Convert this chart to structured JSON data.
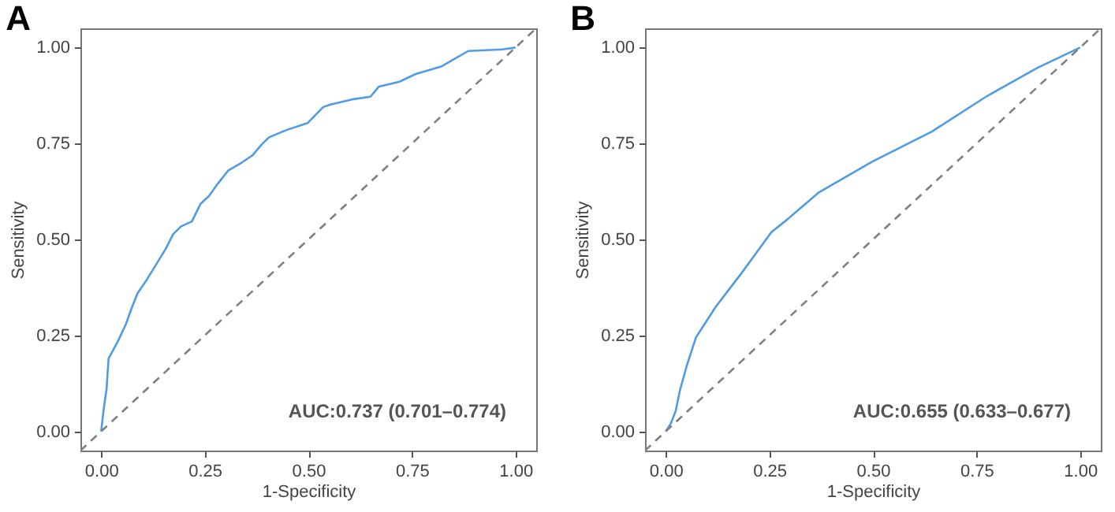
{
  "chart_data": [
    {
      "type": "line",
      "title": "A",
      "xlabel": "1-Specificity",
      "ylabel": "Sensitivity",
      "xlim": [
        -0.05,
        1.05
      ],
      "ylim": [
        -0.05,
        1.05
      ],
      "xticks": [
        {
          "value": 0,
          "label": "0.00"
        },
        {
          "value": 0.25,
          "label": "0.25"
        },
        {
          "value": 0.5,
          "label": "0.50"
        },
        {
          "value": 0.75,
          "label": "0.75"
        },
        {
          "value": 1,
          "label": "1.00"
        }
      ],
      "yticks": [
        {
          "value": 0,
          "label": "0.00"
        },
        {
          "value": 0.25,
          "label": "0.25"
        },
        {
          "value": 0.5,
          "label": "0.50"
        },
        {
          "value": 0.75,
          "label": "0.75"
        },
        {
          "value": 1,
          "label": "1.00"
        }
      ],
      "grid": false,
      "line_style": "solid",
      "annotations": [
        "AUC:0.737 (0.701–0.774)"
      ],
      "series": [
        {
          "color": "#4f9be6",
          "x": [
            0,
            0.006,
            0.013,
            0.018,
            0.028,
            0.041,
            0.06,
            0.075,
            0.088,
            0.11,
            0.13,
            0.155,
            0.174,
            0.193,
            0.219,
            0.24,
            0.26,
            0.282,
            0.307,
            0.339,
            0.365,
            0.388,
            0.405,
            0.447,
            0.498,
            0.536,
            0.555,
            0.606,
            0.65,
            0.67,
            0.72,
            0.759,
            0.822,
            0.854,
            0.886,
            0.968,
            1
          ],
          "values": [
            0,
            0.057,
            0.11,
            0.19,
            0.21,
            0.236,
            0.28,
            0.325,
            0.36,
            0.395,
            0.43,
            0.474,
            0.514,
            0.534,
            0.547,
            0.593,
            0.613,
            0.646,
            0.68,
            0.7,
            0.719,
            0.748,
            0.766,
            0.785,
            0.803,
            0.845,
            0.852,
            0.865,
            0.872,
            0.898,
            0.911,
            0.931,
            0.951,
            0.971,
            0.991,
            0.995,
            1
          ]
        },
        {
          "color": "#808080",
          "line_style": "dashed",
          "x": [
            -0.05,
            1.05
          ],
          "values": [
            -0.05,
            1.05
          ]
        }
      ]
    },
    {
      "type": "line",
      "title": "B",
      "xlabel": "1-Specificity",
      "ylabel": "Sensitivity",
      "xlim": [
        -0.05,
        1.05
      ],
      "ylim": [
        -0.05,
        1.05
      ],
      "xticks": [
        {
          "value": 0,
          "label": "0.00"
        },
        {
          "value": 0.25,
          "label": "0.25"
        },
        {
          "value": 0.5,
          "label": "0.50"
        },
        {
          "value": 0.75,
          "label": "0.75"
        },
        {
          "value": 1,
          "label": "1.00"
        }
      ],
      "yticks": [
        {
          "value": 0,
          "label": "0.00"
        },
        {
          "value": 0.25,
          "label": "0.25"
        },
        {
          "value": 0.5,
          "label": "0.50"
        },
        {
          "value": 0.75,
          "label": "0.75"
        },
        {
          "value": 1,
          "label": "1.00"
        }
      ],
      "grid": false,
      "line_style": "solid",
      "annotations": [
        "AUC:0.655 (0.633–0.677)"
      ],
      "series": [
        {
          "color": "#4f9be6",
          "x": [
            0,
            0.012,
            0.024,
            0.034,
            0.051,
            0.073,
            0.121,
            0.182,
            0.255,
            0.291,
            0.37,
            0.497,
            0.642,
            0.776,
            0.897,
            1
          ],
          "values": [
            0,
            0.02,
            0.053,
            0.106,
            0.172,
            0.245,
            0.325,
            0.411,
            0.519,
            0.55,
            0.623,
            0.702,
            0.781,
            0.874,
            0.947,
            1
          ]
        },
        {
          "color": "#808080",
          "line_style": "dashed",
          "x": [
            -0.05,
            1.05
          ],
          "values": [
            -0.05,
            1.05
          ]
        }
      ]
    }
  ]
}
